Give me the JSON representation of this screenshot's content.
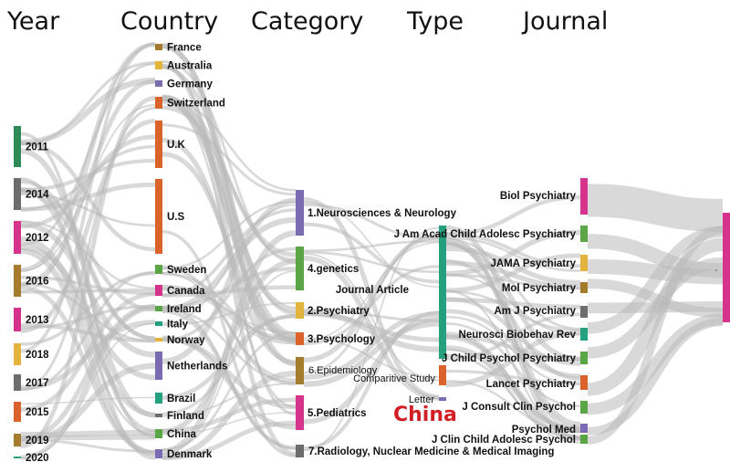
{
  "headers": {
    "year": "Year",
    "country": "Country",
    "category": "Category",
    "type": "Type",
    "journal": "Journal"
  },
  "overlay_text": "China",
  "end_marker": "·",
  "colors": {
    "flow": "#b9b9b9",
    "green": "#2e8b57",
    "gray": "#6d6d6d",
    "magenta": "#d6338c",
    "brown": "#a57c2e",
    "gold": "#e3b43b",
    "orange": "#d9632a",
    "purple": "#7b6bb3",
    "lightgreen": "#5aa646",
    "teal": "#24a07f",
    "overlay_red": "#d21f26"
  },
  "nodes": {
    "year": [
      {
        "label": "2011",
        "color": "green"
      },
      {
        "label": "2014",
        "color": "gray"
      },
      {
        "label": "2012",
        "color": "magenta"
      },
      {
        "label": "2016",
        "color": "brown"
      },
      {
        "label": "2013",
        "color": "magenta"
      },
      {
        "label": "2018",
        "color": "gold"
      },
      {
        "label": "2017",
        "color": "gray"
      },
      {
        "label": "2015",
        "color": "orange"
      },
      {
        "label": "2019",
        "color": "brown"
      },
      {
        "label": "2020",
        "color": "teal"
      }
    ],
    "country": [
      {
        "label": "France",
        "color": "brown"
      },
      {
        "label": "Australia",
        "color": "gold"
      },
      {
        "label": "Germany",
        "color": "purple"
      },
      {
        "label": "Switzerland",
        "color": "orange"
      },
      {
        "label": "U.K",
        "color": "orange"
      },
      {
        "label": "U.S",
        "color": "orange"
      },
      {
        "label": "Sweden",
        "color": "lightgreen"
      },
      {
        "label": "Canada",
        "color": "magenta"
      },
      {
        "label": "Ireland",
        "color": "lightgreen"
      },
      {
        "label": "Italy",
        "color": "teal"
      },
      {
        "label": "Norway",
        "color": "gold"
      },
      {
        "label": "Netherlands",
        "color": "purple"
      },
      {
        "label": "Brazil",
        "color": "teal"
      },
      {
        "label": "Finland",
        "color": "gray"
      },
      {
        "label": "China",
        "color": "lightgreen"
      },
      {
        "label": "Denmark",
        "color": "purple"
      }
    ],
    "category": [
      {
        "label": "1.Neurosciences & Neurology",
        "color": "purple"
      },
      {
        "label": "4.genetics",
        "color": "lightgreen"
      },
      {
        "label": "2.Psychiatry",
        "color": "gold"
      },
      {
        "label": "3.Psychology",
        "color": "orange"
      },
      {
        "label": "6.Epidemiology",
        "color": "brown"
      },
      {
        "label": "5.Pediatrics",
        "color": "magenta"
      },
      {
        "label": "7.Radiology, Nuclear Medicine & Medical Imaging",
        "color": "gray"
      }
    ],
    "type": [
      {
        "label": "Journal Article",
        "color": "teal"
      },
      {
        "label": "Comparitive Study",
        "color": "orange"
      },
      {
        "label": "Letter",
        "color": "purple"
      }
    ],
    "journal": [
      {
        "label": "Biol Psychiatry",
        "color": "magenta"
      },
      {
        "label": "J Am Acad Child Adolesc Psychiatry",
        "color": "lightgreen"
      },
      {
        "label": "JAMA Psychiatry",
        "color": "gold"
      },
      {
        "label": "Mol Psychiatry",
        "color": "brown"
      },
      {
        "label": "Am J Psychiatry",
        "color": "gray"
      },
      {
        "label": "Neurosci Biobehav Rev",
        "color": "teal"
      },
      {
        "label": "J Child Psychol Psychiatry",
        "color": "lightgreen"
      },
      {
        "label": "Lancet Psychiatry",
        "color": "orange"
      },
      {
        "label": "J Consult Clin Psychol",
        "color": "lightgreen"
      },
      {
        "label": "Psychol Med",
        "color": "purple"
      },
      {
        "label": "J Clin Child Adolesc Psychol",
        "color": "lightgreen"
      }
    ],
    "sink": [
      {
        "label": "",
        "color": "magenta"
      }
    ]
  }
}
